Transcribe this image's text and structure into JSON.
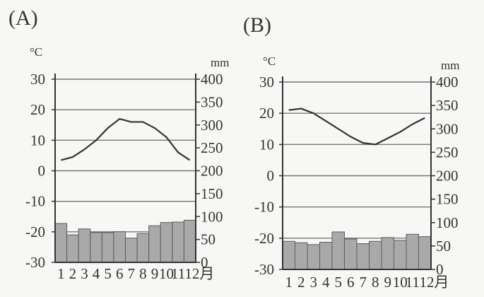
{
  "chart_data": [
    {
      "type": "bar+line",
      "panel_label": "(A)",
      "left_unit": "°C",
      "right_unit": "mm",
      "temp_ticks": [
        "30",
        "20",
        "10",
        "0",
        "-10",
        "-20",
        "-30"
      ],
      "precip_ticks": [
        "400",
        "350",
        "300",
        "250",
        "200",
        "150",
        "100",
        "50",
        "0"
      ],
      "months": [
        "1",
        "2",
        "3",
        "4",
        "5",
        "6",
        "7",
        "8",
        "9",
        "10",
        "11",
        "12月"
      ],
      "temp_range": [
        -30,
        30
      ],
      "precip_range": [
        0,
        400
      ],
      "temperature": [
        3.5,
        4.5,
        7,
        10,
        14,
        17,
        16,
        16,
        14,
        11,
        6,
        3.5
      ],
      "precipitation": [
        85,
        60,
        73,
        65,
        65,
        67,
        53,
        63,
        80,
        87,
        88,
        92
      ],
      "grid": true
    },
    {
      "type": "bar+line",
      "panel_label": "(B)",
      "left_unit": "°C",
      "right_unit": "mm",
      "temp_ticks": [
        "30",
        "20",
        "10",
        "0",
        "-10",
        "-20",
        "-30"
      ],
      "precip_ticks": [
        "400",
        "350",
        "300",
        "250",
        "200",
        "150",
        "100",
        "50",
        "0"
      ],
      "months": [
        "1",
        "2",
        "3",
        "4",
        "5",
        "6",
        "7",
        "8",
        "9",
        "10",
        "11",
        "12月"
      ],
      "temp_range": [
        -30,
        30
      ],
      "precip_range": [
        0,
        400
      ],
      "temperature": [
        21,
        21.5,
        20,
        17.5,
        15,
        12.5,
        10.5,
        10,
        12,
        14,
        16.5,
        18.5
      ],
      "precipitation": [
        60,
        57,
        53,
        58,
        80,
        65,
        55,
        60,
        68,
        62,
        75,
        70
      ],
      "grid": true
    }
  ]
}
